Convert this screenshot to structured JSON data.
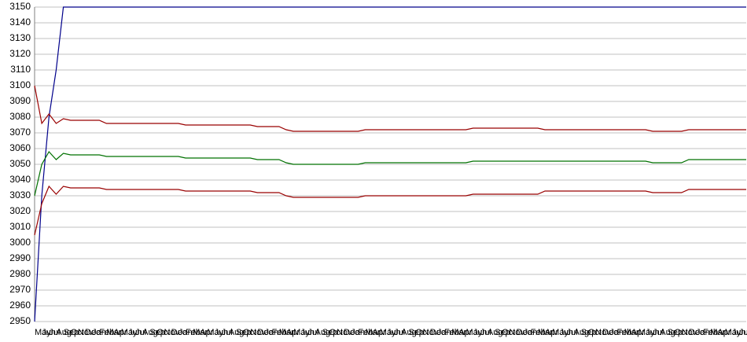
{
  "chart_data": {
    "type": "line",
    "categories": [
      "May",
      "Jun",
      "Jul",
      "Aug",
      "Sep",
      "Oct",
      "Nov",
      "Dec",
      "Jan",
      "Feb",
      "Mar",
      "Apr",
      "May",
      "Jun",
      "Jul",
      "Aug",
      "Sep",
      "Oct",
      "Nov",
      "Dec",
      "Jan",
      "Feb",
      "Mar",
      "Apr",
      "May",
      "Jun",
      "Jul",
      "Aug",
      "Sep",
      "Oct",
      "Nov",
      "Dec",
      "Jan",
      "Feb",
      "Mar",
      "Apr",
      "May",
      "Jun",
      "Jul",
      "Aug",
      "Sep",
      "Oct",
      "Nov",
      "Dec",
      "Jan",
      "Feb",
      "Mar",
      "Apr",
      "May",
      "Jun",
      "Jul",
      "Aug",
      "Sep",
      "Oct",
      "Nov",
      "Dec",
      "Jan",
      "Feb",
      "Mar",
      "Apr",
      "May",
      "Jun",
      "Jul",
      "Aug",
      "Sep",
      "Oct",
      "Nov",
      "Dec",
      "Jan",
      "Feb",
      "Mar",
      "Apr",
      "May",
      "Jun",
      "Jul",
      "Aug",
      "Sep",
      "Oct",
      "Nov",
      "Dec",
      "Jan",
      "Feb",
      "Mar",
      "Apr",
      "May",
      "Jun",
      "Jul",
      "Aug",
      "Sep",
      "Oct",
      "Nov",
      "Dec",
      "Jan",
      "Feb",
      "Mar",
      "Apr",
      "May",
      "Jun",
      "Jul",
      "Aug"
    ],
    "series": [
      {
        "color": "#00008b",
        "values": [
          2950,
          3030,
          3080,
          3110,
          3150,
          3150,
          3150,
          3150,
          3150,
          3150,
          3150,
          3150,
          3150,
          3150,
          3150,
          3150,
          3150,
          3150,
          3150,
          3150,
          3150,
          3150,
          3150,
          3150,
          3150,
          3150,
          3150,
          3150,
          3150,
          3150,
          3150,
          3150,
          3150,
          3150,
          3150,
          3150,
          3150,
          3150,
          3150,
          3150,
          3150,
          3150,
          3150,
          3150,
          3150,
          3150,
          3150,
          3150,
          3150,
          3150,
          3150,
          3150,
          3150,
          3150,
          3150,
          3150,
          3150,
          3150,
          3150,
          3150,
          3150,
          3150,
          3150,
          3150,
          3150,
          3150,
          3150,
          3150,
          3150,
          3150,
          3150,
          3150,
          3150,
          3150,
          3150,
          3150,
          3150,
          3150,
          3150,
          3150,
          3150,
          3150,
          3150,
          3150,
          3150,
          3150,
          3150,
          3150,
          3150,
          3150,
          3150,
          3150,
          3150,
          3150,
          3150,
          3150,
          3150,
          3150,
          3150,
          3150
        ]
      },
      {
        "color": "#990000",
        "values": [
          3100,
          3076,
          3082,
          3076,
          3079,
          3078,
          3078,
          3078,
          3078,
          3078,
          3076,
          3076,
          3076,
          3076,
          3076,
          3076,
          3076,
          3076,
          3076,
          3076,
          3076,
          3075,
          3075,
          3075,
          3075,
          3075,
          3075,
          3075,
          3075,
          3075,
          3075,
          3074,
          3074,
          3074,
          3074,
          3072,
          3071,
          3071,
          3071,
          3071,
          3071,
          3071,
          3071,
          3071,
          3071,
          3071,
          3072,
          3072,
          3072,
          3072,
          3072,
          3072,
          3072,
          3072,
          3072,
          3072,
          3072,
          3072,
          3072,
          3072,
          3072,
          3073,
          3073,
          3073,
          3073,
          3073,
          3073,
          3073,
          3073,
          3073,
          3073,
          3072,
          3072,
          3072,
          3072,
          3072,
          3072,
          3072,
          3072,
          3072,
          3072,
          3072,
          3072,
          3072,
          3072,
          3072,
          3071,
          3071,
          3071,
          3071,
          3071,
          3072,
          3072,
          3072,
          3072,
          3072,
          3072,
          3072,
          3072,
          3072
        ]
      },
      {
        "color": "#007000",
        "values": [
          3030,
          3050,
          3058,
          3053,
          3057,
          3056,
          3056,
          3056,
          3056,
          3056,
          3055,
          3055,
          3055,
          3055,
          3055,
          3055,
          3055,
          3055,
          3055,
          3055,
          3055,
          3054,
          3054,
          3054,
          3054,
          3054,
          3054,
          3054,
          3054,
          3054,
          3054,
          3053,
          3053,
          3053,
          3053,
          3051,
          3050,
          3050,
          3050,
          3050,
          3050,
          3050,
          3050,
          3050,
          3050,
          3050,
          3051,
          3051,
          3051,
          3051,
          3051,
          3051,
          3051,
          3051,
          3051,
          3051,
          3051,
          3051,
          3051,
          3051,
          3051,
          3052,
          3052,
          3052,
          3052,
          3052,
          3052,
          3052,
          3052,
          3052,
          3052,
          3052,
          3052,
          3052,
          3052,
          3052,
          3052,
          3052,
          3052,
          3052,
          3052,
          3052,
          3052,
          3052,
          3052,
          3052,
          3051,
          3051,
          3051,
          3051,
          3051,
          3053,
          3053,
          3053,
          3053,
          3053,
          3053,
          3053,
          3053,
          3053
        ]
      },
      {
        "color": "#990000",
        "values": [
          3005,
          3025,
          3036,
          3031,
          3036,
          3035,
          3035,
          3035,
          3035,
          3035,
          3034,
          3034,
          3034,
          3034,
          3034,
          3034,
          3034,
          3034,
          3034,
          3034,
          3034,
          3033,
          3033,
          3033,
          3033,
          3033,
          3033,
          3033,
          3033,
          3033,
          3033,
          3032,
          3032,
          3032,
          3032,
          3030,
          3029,
          3029,
          3029,
          3029,
          3029,
          3029,
          3029,
          3029,
          3029,
          3029,
          3030,
          3030,
          3030,
          3030,
          3030,
          3030,
          3030,
          3030,
          3030,
          3030,
          3030,
          3030,
          3030,
          3030,
          3030,
          3031,
          3031,
          3031,
          3031,
          3031,
          3031,
          3031,
          3031,
          3031,
          3031,
          3033,
          3033,
          3033,
          3033,
          3033,
          3033,
          3033,
          3033,
          3033,
          3033,
          3033,
          3033,
          3033,
          3033,
          3033,
          3032,
          3032,
          3032,
          3032,
          3032,
          3034,
          3034,
          3034,
          3034,
          3034,
          3034,
          3034,
          3034,
          3034
        ]
      }
    ],
    "ylim": [
      2950,
      3150
    ],
    "yticks": [
      2950,
      2960,
      2970,
      2980,
      2990,
      3000,
      3010,
      3020,
      3030,
      3040,
      3050,
      3060,
      3070,
      3080,
      3090,
      3100,
      3110,
      3120,
      3130,
      3140,
      3150
    ],
    "grid": true
  }
}
